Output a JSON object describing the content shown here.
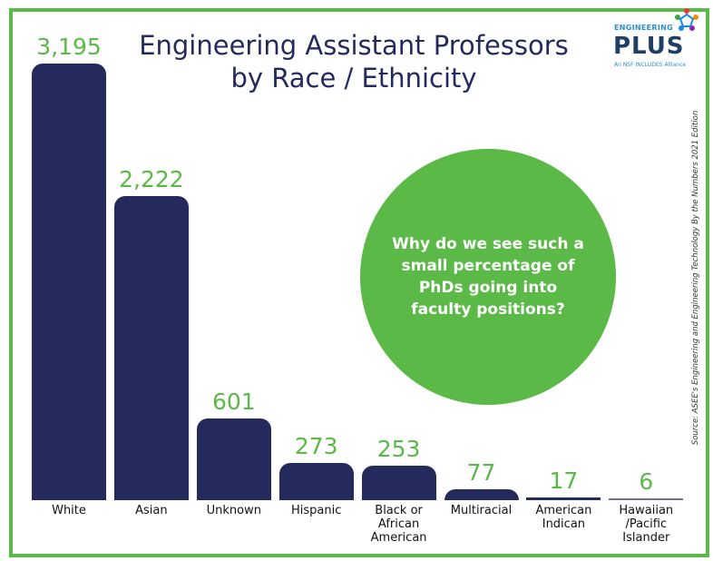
{
  "chart_data": {
    "type": "bar",
    "title": "Engineering Assistant Professors by Race / Ethnicity",
    "categories": [
      "White",
      "Asian",
      "Unknown",
      "Hispanic",
      "Black or African American",
      "Multiracial",
      "American Indican",
      "Hawaiian /Pacific Islander"
    ],
    "values": [
      3195,
      2222,
      601,
      273,
      253,
      77,
      17,
      6
    ],
    "value_labels": [
      "3,195",
      "2,222",
      "601",
      "273",
      "253",
      "77",
      "17",
      "6"
    ],
    "bar_color": "#252a5c",
    "label_color": "#5bb947",
    "grid": false,
    "axes_visible": false
  },
  "callout": "Why do we see such a small percentage of PhDs going into faculty positions?",
  "source": "Source: ASEE's Engineering and Engineering Technology By the Numbers 2021 Edition",
  "logo": {
    "top": "ENGINEERING",
    "main": "PLUS",
    "tagline": "An NSF INCLUDES Alliance"
  },
  "colors": {
    "frame": "#5bb947",
    "accent": "#5bb947",
    "navy": "#252a5c"
  }
}
